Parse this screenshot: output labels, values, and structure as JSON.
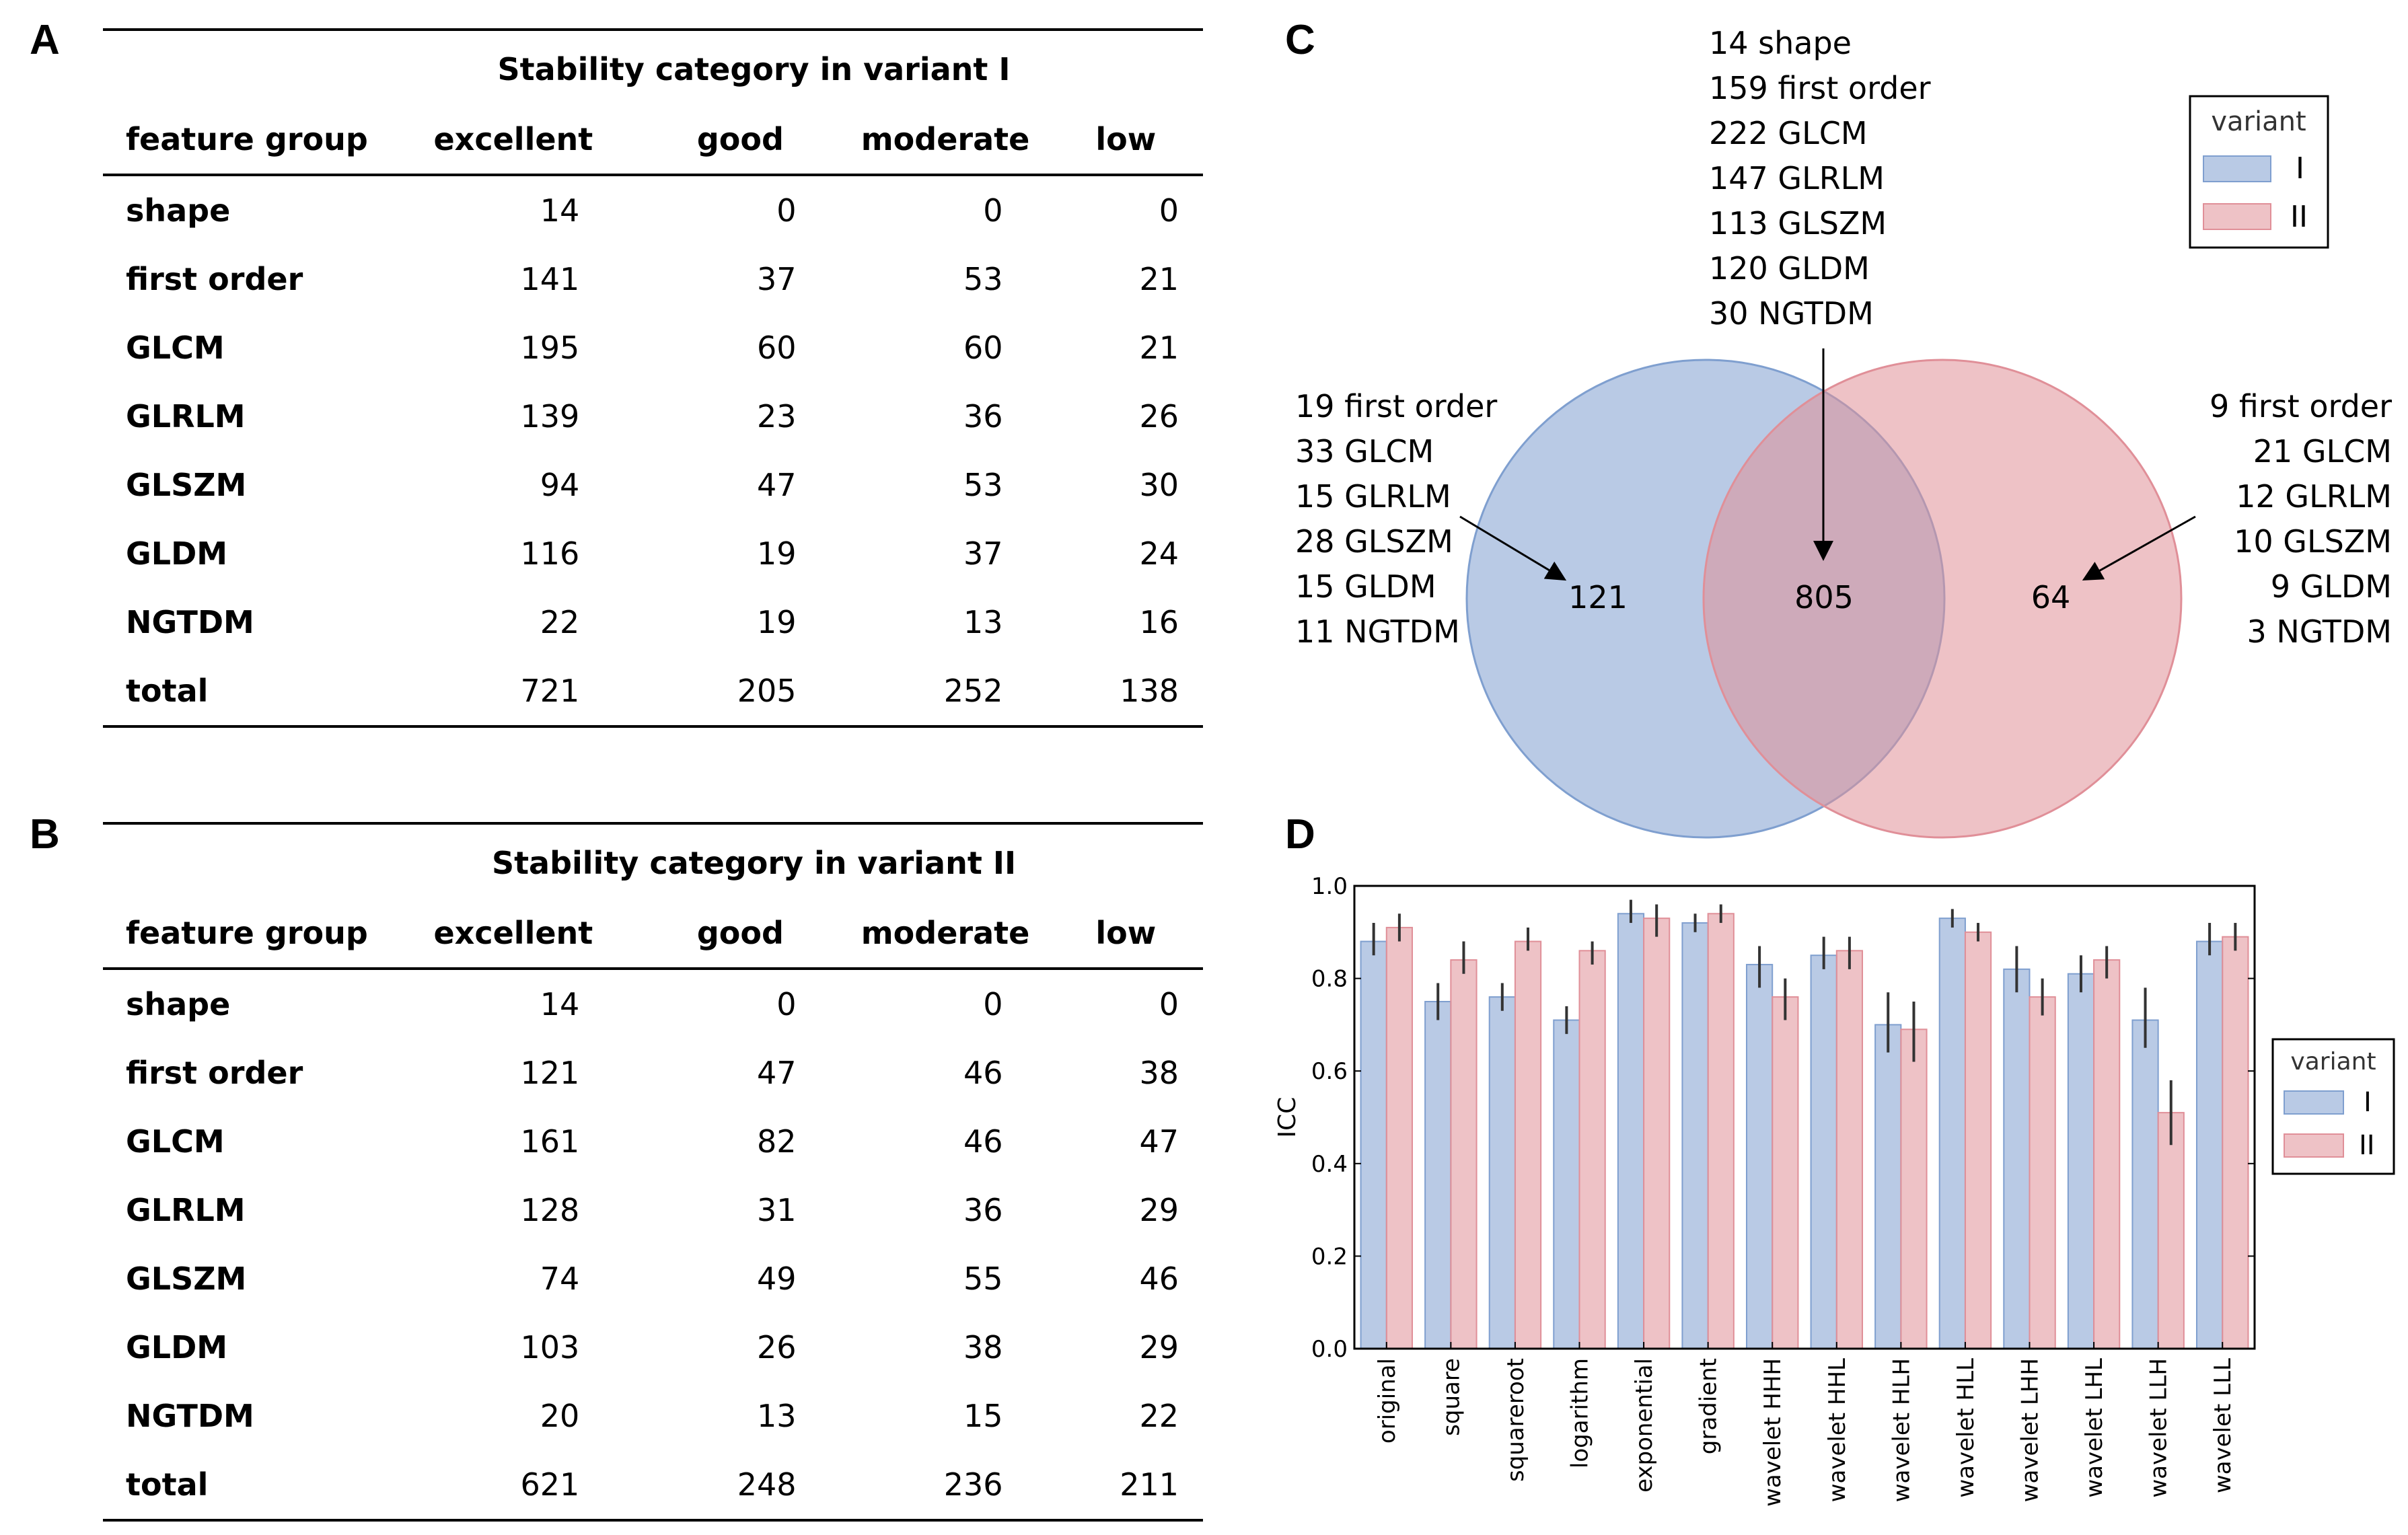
{
  "panels": {
    "a": "A",
    "b": "B",
    "c": "C",
    "d": "D"
  },
  "colors": {
    "variant_I": "#7f9fcf",
    "variant_II": "#e08f98",
    "err": "#333333",
    "axis": "#000000"
  },
  "table_a": {
    "caption": "Stability category in variant I",
    "headers": [
      "feature group",
      "excellent",
      "good",
      "moderate",
      "low"
    ],
    "rows": [
      [
        "shape",
        "14",
        "0",
        "0",
        "0"
      ],
      [
        "first order",
        "141",
        "37",
        "53",
        "21"
      ],
      [
        "GLCM",
        "195",
        "60",
        "60",
        "21"
      ],
      [
        "GLRLM",
        "139",
        "23",
        "36",
        "26"
      ],
      [
        "GLSZM",
        "94",
        "47",
        "53",
        "30"
      ],
      [
        "GLDM",
        "116",
        "19",
        "37",
        "24"
      ],
      [
        "NGTDM",
        "22",
        "19",
        "13",
        "16"
      ],
      [
        "total",
        "721",
        "205",
        "252",
        "138"
      ]
    ]
  },
  "table_b": {
    "caption": "Stability category in variant II",
    "headers": [
      "feature group",
      "excellent",
      "good",
      "moderate",
      "low"
    ],
    "rows": [
      [
        "shape",
        "14",
        "0",
        "0",
        "0"
      ],
      [
        "first order",
        "121",
        "47",
        "46",
        "38"
      ],
      [
        "GLCM",
        "161",
        "82",
        "46",
        "47"
      ],
      [
        "GLRLM",
        "128",
        "31",
        "36",
        "29"
      ],
      [
        "GLSZM",
        "74",
        "49",
        "55",
        "46"
      ],
      [
        "GLDM",
        "103",
        "26",
        "38",
        "29"
      ],
      [
        "NGTDM",
        "20",
        "13",
        "15",
        "22"
      ],
      [
        "total",
        "621",
        "248",
        "236",
        "211"
      ]
    ]
  },
  "venn": {
    "only_I": "121",
    "both": "805",
    "only_II": "64",
    "only_I_breakdown": [
      "19 first order",
      "33 GLCM",
      "15 GLRLM",
      "28 GLSZM",
      "15 GLDM",
      "11 NGTDM"
    ],
    "both_breakdown": [
      "14 shape",
      "159 first order",
      "222 GLCM",
      "147 GLRLM",
      "113 GLSZM",
      "120 GLDM",
      "30 NGTDM"
    ],
    "only_II_breakdown": [
      "9 first order",
      "21 GLCM",
      "12 GLRLM",
      "10 GLSZM",
      "9 GLDM",
      "3 NGTDM"
    ],
    "legend_title": "variant",
    "legend_items": [
      "I",
      "II"
    ]
  },
  "chart_data": {
    "type": "bar",
    "ylabel": "ICC",
    "xlabel": "",
    "ylim": [
      0.0,
      1.0
    ],
    "yticks": [
      "0.0",
      "0.2",
      "0.4",
      "0.6",
      "0.8",
      "1.0"
    ],
    "categories": [
      "original",
      "square",
      "squareroot",
      "logarithm",
      "exponential",
      "gradient",
      "wavelet HHH",
      "wavelet HHL",
      "wavelet HLH",
      "wavelet HLL",
      "wavelet LHH",
      "wavelet LHL",
      "wavelet LLH",
      "wavelet LLL"
    ],
    "series": [
      {
        "name": "I",
        "values": [
          0.88,
          0.75,
          0.76,
          0.71,
          0.94,
          0.92,
          0.83,
          0.85,
          0.7,
          0.93,
          0.82,
          0.81,
          0.71,
          0.88
        ],
        "err_low": [
          0.85,
          0.71,
          0.73,
          0.68,
          0.92,
          0.9,
          0.78,
          0.82,
          0.64,
          0.91,
          0.77,
          0.77,
          0.65,
          0.85
        ],
        "err_high": [
          0.92,
          0.79,
          0.79,
          0.74,
          0.97,
          0.94,
          0.87,
          0.89,
          0.77,
          0.95,
          0.87,
          0.85,
          0.78,
          0.92
        ]
      },
      {
        "name": "II",
        "values": [
          0.91,
          0.84,
          0.88,
          0.86,
          0.93,
          0.94,
          0.76,
          0.86,
          0.69,
          0.9,
          0.76,
          0.84,
          0.51,
          0.89
        ],
        "err_low": [
          0.88,
          0.81,
          0.86,
          0.83,
          0.89,
          0.92,
          0.71,
          0.82,
          0.62,
          0.88,
          0.72,
          0.8,
          0.44,
          0.86
        ],
        "err_high": [
          0.94,
          0.88,
          0.91,
          0.88,
          0.96,
          0.96,
          0.8,
          0.89,
          0.75,
          0.92,
          0.8,
          0.87,
          0.58,
          0.92
        ]
      }
    ],
    "legend_title": "variant",
    "legend_items": [
      "I",
      "II"
    ]
  }
}
